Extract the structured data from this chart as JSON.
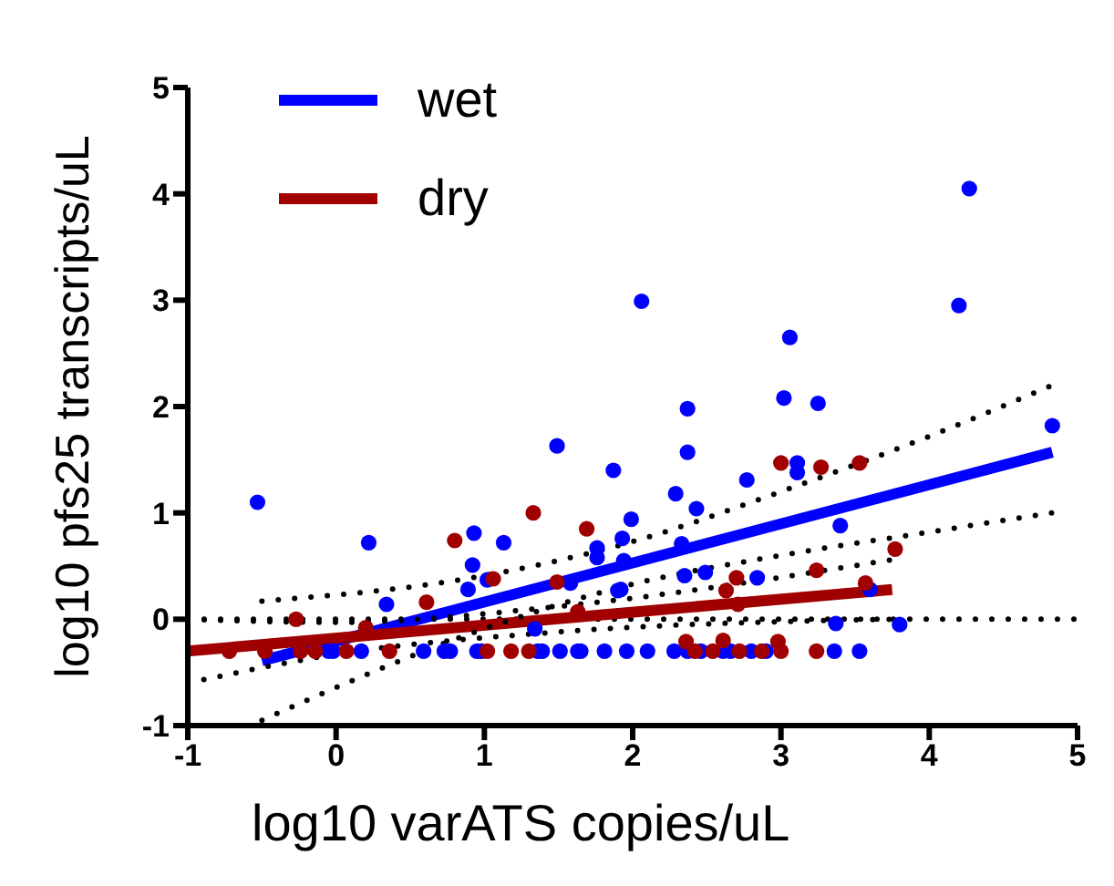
{
  "chart_data": {
    "type": "scatter",
    "xlabel": "log10 varATS copies/uL",
    "ylabel": "log10 pfs25 transcripts/uL",
    "xlim": [
      -1,
      5
    ],
    "xticks": [
      -1,
      0,
      1,
      2,
      3,
      4,
      5
    ],
    "ylim": [
      -1,
      5
    ],
    "yticks": [
      -1,
      0,
      1,
      2,
      3,
      4,
      5
    ],
    "legend": "top left",
    "marker": "circle",
    "ref_lines": [
      {
        "axis": "y",
        "value": 0,
        "color": "#000000",
        "line_style": "dotted"
      }
    ],
    "series": [
      {
        "name": "wet",
        "color": "#0000ff",
        "x": [
          -0.53,
          0.22,
          0.34,
          0.89,
          0.92,
          0.93,
          1.02,
          1.13,
          1.49,
          1.58,
          1.76,
          1.76,
          1.87,
          1.92,
          1.93,
          1.99,
          2.06,
          1.34,
          1.94,
          1.9,
          2.29,
          2.37,
          2.37,
          2.43,
          2.33,
          2.35,
          2.49,
          2.77,
          2.84,
          3.02,
          3.06,
          3.11,
          3.11,
          3.25,
          3.4,
          3.6,
          3.37,
          3.8,
          4.2,
          4.27,
          4.83,
          -0.05,
          -0.02,
          0.17,
          0.59,
          0.73,
          0.77,
          0.95,
          0.98,
          1.18,
          1.36,
          1.39,
          1.51,
          1.63,
          1.65,
          1.81,
          1.96,
          2.1,
          2.28,
          2.37,
          2.46,
          2.61,
          2.66,
          2.8,
          2.9,
          3.36,
          3.53
        ],
        "values": [
          1.1,
          0.72,
          0.14,
          0.28,
          0.51,
          0.81,
          0.37,
          0.72,
          1.63,
          0.34,
          0.67,
          0.58,
          1.4,
          0.28,
          0.76,
          0.94,
          2.99,
          -0.09,
          0.55,
          0.27,
          1.18,
          1.98,
          1.57,
          1.04,
          0.71,
          0.41,
          0.44,
          1.31,
          0.39,
          2.08,
          2.65,
          1.47,
          1.38,
          2.03,
          0.88,
          0.28,
          -0.04,
          -0.05,
          2.95,
          4.05,
          1.82,
          -0.3,
          -0.3,
          -0.3,
          -0.3,
          -0.3,
          -0.3,
          -0.3,
          -0.3,
          null,
          -0.3,
          -0.3,
          -0.3,
          -0.3,
          -0.3,
          -0.3,
          -0.3,
          -0.3,
          -0.3,
          -0.3,
          -0.3,
          -0.3,
          -0.3,
          -0.3,
          -0.3,
          -0.3,
          -0.3
        ]
      },
      {
        "name": "dry",
        "color": "#a00000",
        "x": [
          -0.27,
          -0.72,
          -0.48,
          -0.24,
          -0.14,
          0.07,
          0.36,
          0.2,
          0.61,
          0.8,
          1.06,
          1.02,
          1.33,
          1.3,
          1.49,
          1.69,
          1.63,
          1.18,
          2.63,
          2.7,
          2.71,
          3.0,
          3.27,
          3.53,
          3.24,
          3.77,
          3.57,
          2.36,
          2.61,
          2.98,
          2.42,
          2.54,
          2.72,
          2.87,
          3.0,
          3.24
        ],
        "values": [
          0.0,
          -0.3,
          -0.3,
          -0.3,
          -0.3,
          -0.3,
          -0.3,
          -0.08,
          0.16,
          0.74,
          0.38,
          -0.3,
          1.0,
          -0.3,
          0.35,
          0.85,
          0.07,
          -0.3,
          0.27,
          0.39,
          0.14,
          1.47,
          1.43,
          1.47,
          0.46,
          0.66,
          0.34,
          -0.21,
          -0.2,
          -0.21,
          -0.3,
          -0.3,
          -0.3,
          -0.3,
          -0.3,
          -0.3
        ]
      },
      {
        "type": "line",
        "marker": "none",
        "color": "#0000ff",
        "x": [
          -0.5,
          4.83
        ],
        "values": [
          -0.39,
          1.57
        ]
      },
      {
        "type": "line",
        "marker": "none",
        "color": "#a00000",
        "x": [
          -1,
          3.75
        ],
        "values": [
          -0.3,
          0.28
        ]
      },
      {
        "type": "line",
        "marker": "none",
        "line_style": "dotted",
        "color": "#000000",
        "x": [
          -0.5,
          1,
          2,
          3,
          4,
          4.83
        ],
        "values": [
          -0.95,
          -0.09,
          0.33,
          0.6,
          0.82,
          1.0
        ]
      },
      {
        "type": "line",
        "marker": "none",
        "line_style": "dotted",
        "color": "#000000",
        "x": [
          -0.5,
          1,
          2,
          3,
          4,
          4.83
        ],
        "values": [
          0.17,
          0.41,
          0.73,
          1.2,
          1.72,
          2.2
        ]
      },
      {
        "type": "line",
        "marker": "none",
        "line_style": "dotted",
        "color": "#000000",
        "x": [
          -1,
          0,
          1.5,
          3.75
        ],
        "values": [
          -0.6,
          -0.33,
          -0.12,
          0.0
        ]
      },
      {
        "type": "line",
        "marker": "none",
        "line_style": "dotted",
        "color": "#000000",
        "x": [
          -1,
          0,
          1.5,
          3.75
        ],
        "values": [
          0.0,
          -0.03,
          0.12,
          0.56
        ]
      }
    ]
  }
}
